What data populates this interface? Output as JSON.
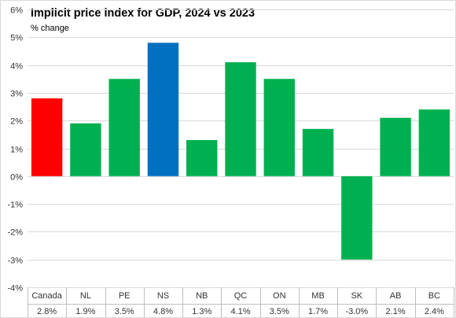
{
  "chart_data": {
    "type": "bar",
    "title": "Implicit price index for GDP, 2024 vs 2023",
    "subtitle": "% change",
    "xlabel": "",
    "ylabel": "",
    "categories": [
      "Canada",
      "NL",
      "PE",
      "NS",
      "NB",
      "QC",
      "ON",
      "MB",
      "SK",
      "AB",
      "BC"
    ],
    "values": [
      2.8,
      1.9,
      3.5,
      4.8,
      1.3,
      4.1,
      3.5,
      1.7,
      -3.0,
      2.1,
      2.4
    ],
    "value_labels": [
      "2.8%",
      "1.9%",
      "3.5%",
      "4.8%",
      "1.3%",
      "4.1%",
      "3.5%",
      "1.7%",
      "-3.0%",
      "2.1%",
      "2.4%"
    ],
    "ylim": [
      -4,
      6
    ],
    "yticks": [
      -4,
      -3,
      -2,
      -1,
      0,
      1,
      2,
      3,
      4,
      5,
      6
    ],
    "ytick_labels": [
      "-4%",
      "-3%",
      "-2%",
      "-1%",
      "0%",
      "1%",
      "2%",
      "3%",
      "4%",
      "5%",
      "6%"
    ],
    "grid": true,
    "legend": "none",
    "bar_colors": [
      "#ff0000",
      "#00b050",
      "#00b050",
      "#0070c0",
      "#00b050",
      "#00b050",
      "#00b050",
      "#00b050",
      "#00b050",
      "#00b050",
      "#00b050"
    ],
    "gridline_color": "#d9d9d9",
    "table_line_color": "#bfbfbf"
  }
}
